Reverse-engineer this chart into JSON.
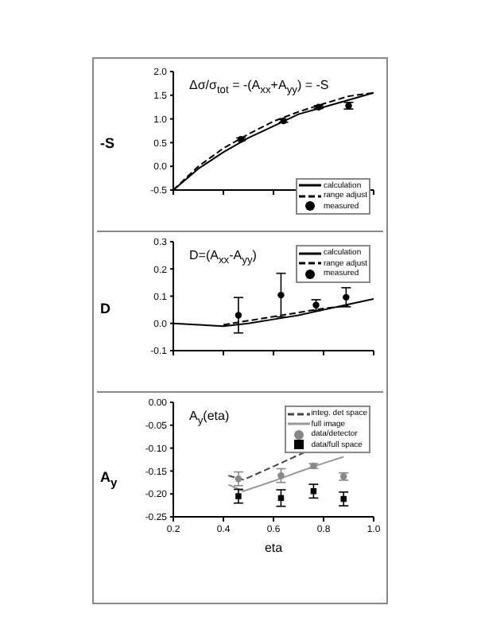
{
  "chart_data": [
    {
      "type": "line",
      "annotations": [
        "Δσ/σ$_{tot}$ = -(A$_{xx}$+A$_{yy}$) = -S"
      ],
      "ylabel": "-S",
      "xlim": [
        0.2,
        1.0
      ],
      "xticks": [
        0.2,
        0.4,
        0.6,
        0.8,
        1
      ],
      "ylim": [
        -0.5,
        2.0
      ],
      "yticks": [
        -0.5,
        {
          "value": 0,
          "label": "0.0"
        },
        0.5,
        {
          "value": 1,
          "label": "1.0"
        },
        1.5,
        {
          "value": 2,
          "label": "2.0"
        }
      ],
      "tick_labels": "y",
      "legend": "bottom right",
      "series": [
        {
          "name": "calculation",
          "color": "#000000",
          "line_style": "solid",
          "x": [
            0.2,
            0.3,
            0.4,
            0.5,
            0.6,
            0.7,
            0.8,
            0.9,
            1.0
          ],
          "values": [
            -0.5,
            -0.05,
            0.3,
            0.6,
            0.85,
            1.1,
            1.25,
            1.4,
            1.55
          ]
        },
        {
          "name": "range adjust",
          "color": "#000000",
          "line_style": "dashed",
          "x": [
            0.2,
            0.3,
            0.4,
            0.5,
            0.6,
            0.7,
            0.8,
            0.9,
            1.0
          ],
          "values": [
            -0.5,
            0.0,
            0.38,
            0.68,
            0.95,
            1.15,
            1.32,
            1.48,
            1.55
          ]
        },
        {
          "name": "measured",
          "type": "scatter",
          "color": "#000000",
          "marker": "circle",
          "x": [
            0.47,
            0.64,
            0.78,
            0.9
          ],
          "values": [
            0.57,
            0.96,
            1.25,
            1.28
          ],
          "errors": [
            0.03,
            0.03,
            0.03,
            0.07
          ]
        }
      ]
    },
    {
      "type": "line",
      "annotations": [
        "D=(A$_{xx}$-A$_{yy}$)"
      ],
      "ylabel": "D",
      "xlim": [
        0.2,
        1.0
      ],
      "xticks": [
        0.2,
        0.4,
        0.6,
        0.8,
        1
      ],
      "ylim": [
        -0.1,
        0.3
      ],
      "yticks": [
        -0.1,
        {
          "value": 0,
          "label": "0.0"
        },
        0.1,
        0.2,
        0.3
      ],
      "tick_labels": "y",
      "legend": "top right",
      "series": [
        {
          "name": "calculation",
          "color": "#000000",
          "line_style": "solid",
          "x": [
            0.2,
            0.3,
            0.4,
            0.5,
            0.6,
            0.7,
            0.8,
            0.9,
            1.0
          ],
          "values": [
            0,
            -0.005,
            -0.01,
            0,
            0.015,
            0.03,
            0.05,
            0.07,
            0.09
          ]
        },
        {
          "name": "range adjust",
          "color": "#000000",
          "line_style": "dashed",
          "x": [
            0.4,
            0.5,
            0.6,
            0.7,
            0.8,
            0.9
          ],
          "values": [
            -0.005,
            0.01,
            0.025,
            0.04,
            0.055,
            0.065
          ]
        },
        {
          "name": "measured",
          "type": "scatter",
          "color": "#000000",
          "marker": "circle",
          "x": [
            0.46,
            0.63,
            0.77,
            0.89
          ],
          "values": [
            0.03,
            0.104,
            0.067,
            0.096
          ],
          "errors": [
            0.065,
            0.08,
            0.02,
            0.035
          ]
        }
      ]
    },
    {
      "type": "line",
      "annotations": [
        "A$_{y}$(eta)"
      ],
      "ylabel": "A$_{y}$",
      "xlabel": "eta",
      "xlim": [
        0.2,
        1.0
      ],
      "xticks": [
        0.2,
        0.4,
        0.6,
        0.8,
        {
          "value": 1.0,
          "label": "1.0"
        }
      ],
      "ylim": [
        -0.25,
        0.0
      ],
      "yticks": [
        -0.25,
        {
          "value": -0.2,
          "label": "-0.20"
        },
        -0.15,
        {
          "value": -0.1,
          "label": "-0.10"
        },
        -0.05,
        {
          "value": 0,
          "label": "0.00"
        }
      ],
      "legend": "top right",
      "series": [
        {
          "name": "integ. det space",
          "color": "#444444",
          "line_style": "dashed",
          "x": [
            0.42,
            0.48,
            0.6,
            0.7,
            0.8,
            0.88
          ],
          "values": [
            -0.16,
            -0.169,
            -0.14,
            -0.115,
            -0.09,
            -0.074
          ]
        },
        {
          "name": "full image",
          "color": "#999999",
          "line_style": "solid",
          "x": [
            0.42,
            0.48,
            0.6,
            0.7,
            0.8,
            0.88
          ],
          "values": [
            -0.18,
            -0.194,
            -0.172,
            -0.152,
            -0.133,
            -0.119
          ]
        },
        {
          "name": "data/detector",
          "type": "scatter",
          "color": "#888888",
          "marker": "circle",
          "x": [
            0.46,
            0.63,
            0.76,
            0.88
          ],
          "values": [
            -0.167,
            -0.16,
            -0.139,
            -0.162
          ],
          "errors": [
            0.015,
            0.015,
            0.005,
            0.008
          ]
        },
        {
          "name": "data/full space",
          "type": "scatter",
          "color": "#000000",
          "marker": "square",
          "x": [
            0.46,
            0.63,
            0.76,
            0.88
          ],
          "values": [
            -0.205,
            -0.209,
            -0.194,
            -0.211
          ],
          "errors": [
            0.015,
            0.018,
            0.015,
            0.015
          ]
        }
      ]
    }
  ]
}
